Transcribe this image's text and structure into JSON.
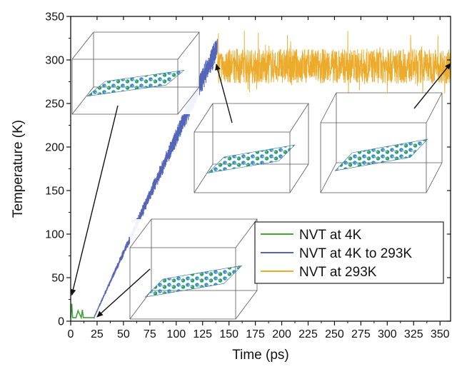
{
  "chart_data": {
    "type": "line",
    "xlabel": "Time (ps)",
    "ylabel": "Temperature (K)",
    "xlim": [
      0,
      360
    ],
    "ylim": [
      0,
      350
    ],
    "xticks": [
      0,
      25,
      50,
      75,
      100,
      125,
      150,
      175,
      200,
      225,
      250,
      275,
      300,
      325,
      350
    ],
    "yticks": [
      0,
      50,
      100,
      150,
      200,
      250,
      300,
      350
    ],
    "legend_position": "bottom-right",
    "series": [
      {
        "name": "NVT at 4K",
        "color": "#3fa535",
        "x": [
          0,
          1,
          1.8,
          3,
          5,
          7,
          10,
          11,
          12,
          14,
          17,
          20,
          22
        ],
        "y": [
          4,
          20,
          4,
          4,
          4,
          12,
          4,
          13,
          4,
          4,
          4,
          4,
          4
        ]
      },
      {
        "name": "NVT at 4K to 293K",
        "color": "#5565b8",
        "x": [
          22,
          30,
          40,
          50,
          60,
          70,
          80,
          90,
          100,
          110,
          120,
          130,
          135,
          139
        ],
        "y": [
          4,
          30,
          58,
          80,
          110,
          135,
          160,
          183,
          205,
          232,
          255,
          283,
          298,
          315
        ]
      },
      {
        "name": "NVT at 293K",
        "color": "#ecab2b",
        "x": [
          139,
          150,
          175,
          200,
          225,
          250,
          275,
          300,
          325,
          350,
          360
        ],
        "y": [
          293,
          292,
          293,
          293,
          294,
          293,
          293,
          292,
          294,
          293,
          293
        ]
      }
    ],
    "annotations": [
      {
        "type": "arrow",
        "description": "structure snapshot at start",
        "target": [
          1,
          30
        ]
      },
      {
        "type": "arrow",
        "description": "structure snapshot at ramp start",
        "target": [
          25,
          5
        ]
      },
      {
        "type": "arrow",
        "description": "structure snapshot at ramp end",
        "target": [
          138,
          295
        ]
      },
      {
        "type": "arrow",
        "description": "structure snapshot at end",
        "target": [
          360,
          296
        ]
      }
    ]
  }
}
